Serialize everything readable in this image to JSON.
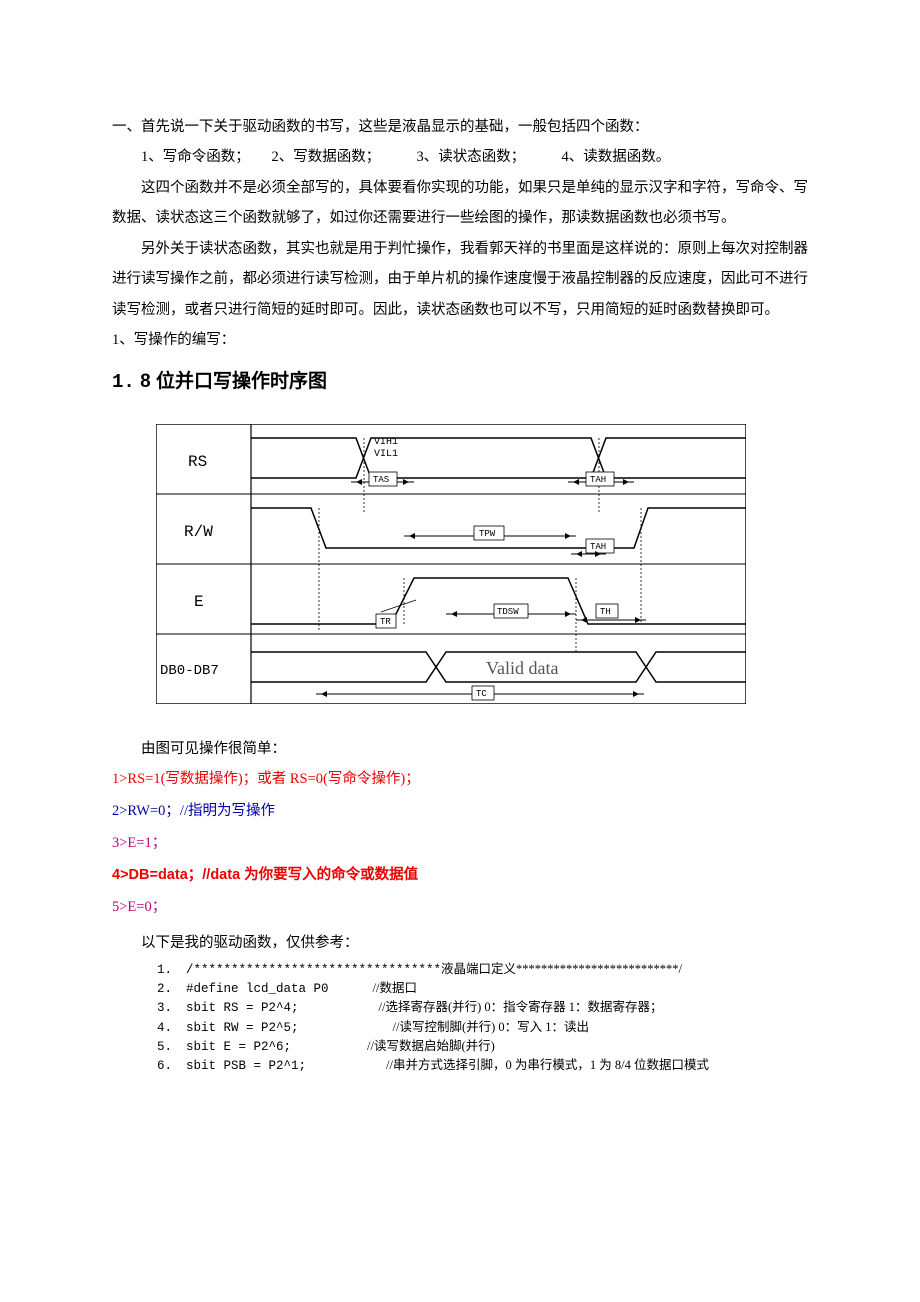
{
  "intro_line": "一、首先说一下关于驱动函数的书写，这些是液晶显示的基础，一般包括四个函数：",
  "funcs_line": "1、写命令函数；　　2、写数据函数；　　　3、读状态函数；　　　4、读数据函数。",
  "para1": "这四个函数并不是必须全部写的，具体要看你实现的功能，如果只是单纯的显示汉字和字符，写命令、写数据、读状态这三个函数就够了，如过你还需要进行一些绘图的操作，那读数据函数也必须书写。",
  "para2": "另外关于读状态函数，其实也就是用于判忙操作，我看郭天祥的书里面是这样说的：原则上每次对控制器进行读写操作之前，都必须进行读写检测，由于单片机的操作速度慢于液晶控制器的反应速度，因此可不进行读写检测，或者只进行简短的延时即可。因此，读状态函数也可以不写，只用简短的延时函数替换即可。",
  "write_op_label": "1、写操作的编写：",
  "heading_num": "1.",
  "heading_text": "8 位并口写操作时序图",
  "timing": {
    "signals": [
      "RS",
      "R/W",
      "E",
      "DB0-DB7"
    ],
    "labels": {
      "vih": "VIH1",
      "vil": "VIL1",
      "tas": "TAS",
      "tah": "TAH",
      "tpw": "TPW",
      "tr": "TR",
      "tdsw": "TDSW",
      "th": "TH",
      "tc": "TC",
      "valid": "Valid data"
    }
  },
  "simple_line": "由图可见操作很简单：",
  "step1": "1>RS=1(写数据操作)；或者 RS=0(写命令操作)；",
  "step2": "2>RW=0；//指明为写操作",
  "step3": "3>E=1；",
  "step4_a": "4>DB=data；//data",
  "step4_b": " 为你要写入的命令或数据值",
  "step5": "5>E=0；",
  "driver_note": "以下是我的驱动函数，仅供参考：",
  "code": {
    "rows": [
      {
        "n": "1.",
        "code": "/*********************************",
        "tail": "液晶端口定义**************************/"
      },
      {
        "n": "2.",
        "code": "#define lcd_data  P0",
        "pad": 44,
        "cmt": "//数据口"
      },
      {
        "n": "3.",
        "code": "sbit  RS   = P2^4;",
        "pad": 80,
        "cmt": "//选择寄存器(并行) 0：指令寄存器  1：数据寄存器；"
      },
      {
        "n": "4.",
        "code": "sbit  RW  = P2^5;",
        "pad": 94,
        "cmt": "//读写控制脚(并行)  0：写入  1：读出"
      },
      {
        "n": "5.",
        "code": "sbit  E    = P2^6;",
        "pad": 76,
        "cmt": "//读写数据启始脚(并行)"
      },
      {
        "n": "6.",
        "code": "sbit  PSB  = P2^1;",
        "pad": 80,
        "cmt": "//串并方式选择引脚，0 为串行模式，1 为 8/4 位数据口模式"
      }
    ]
  }
}
